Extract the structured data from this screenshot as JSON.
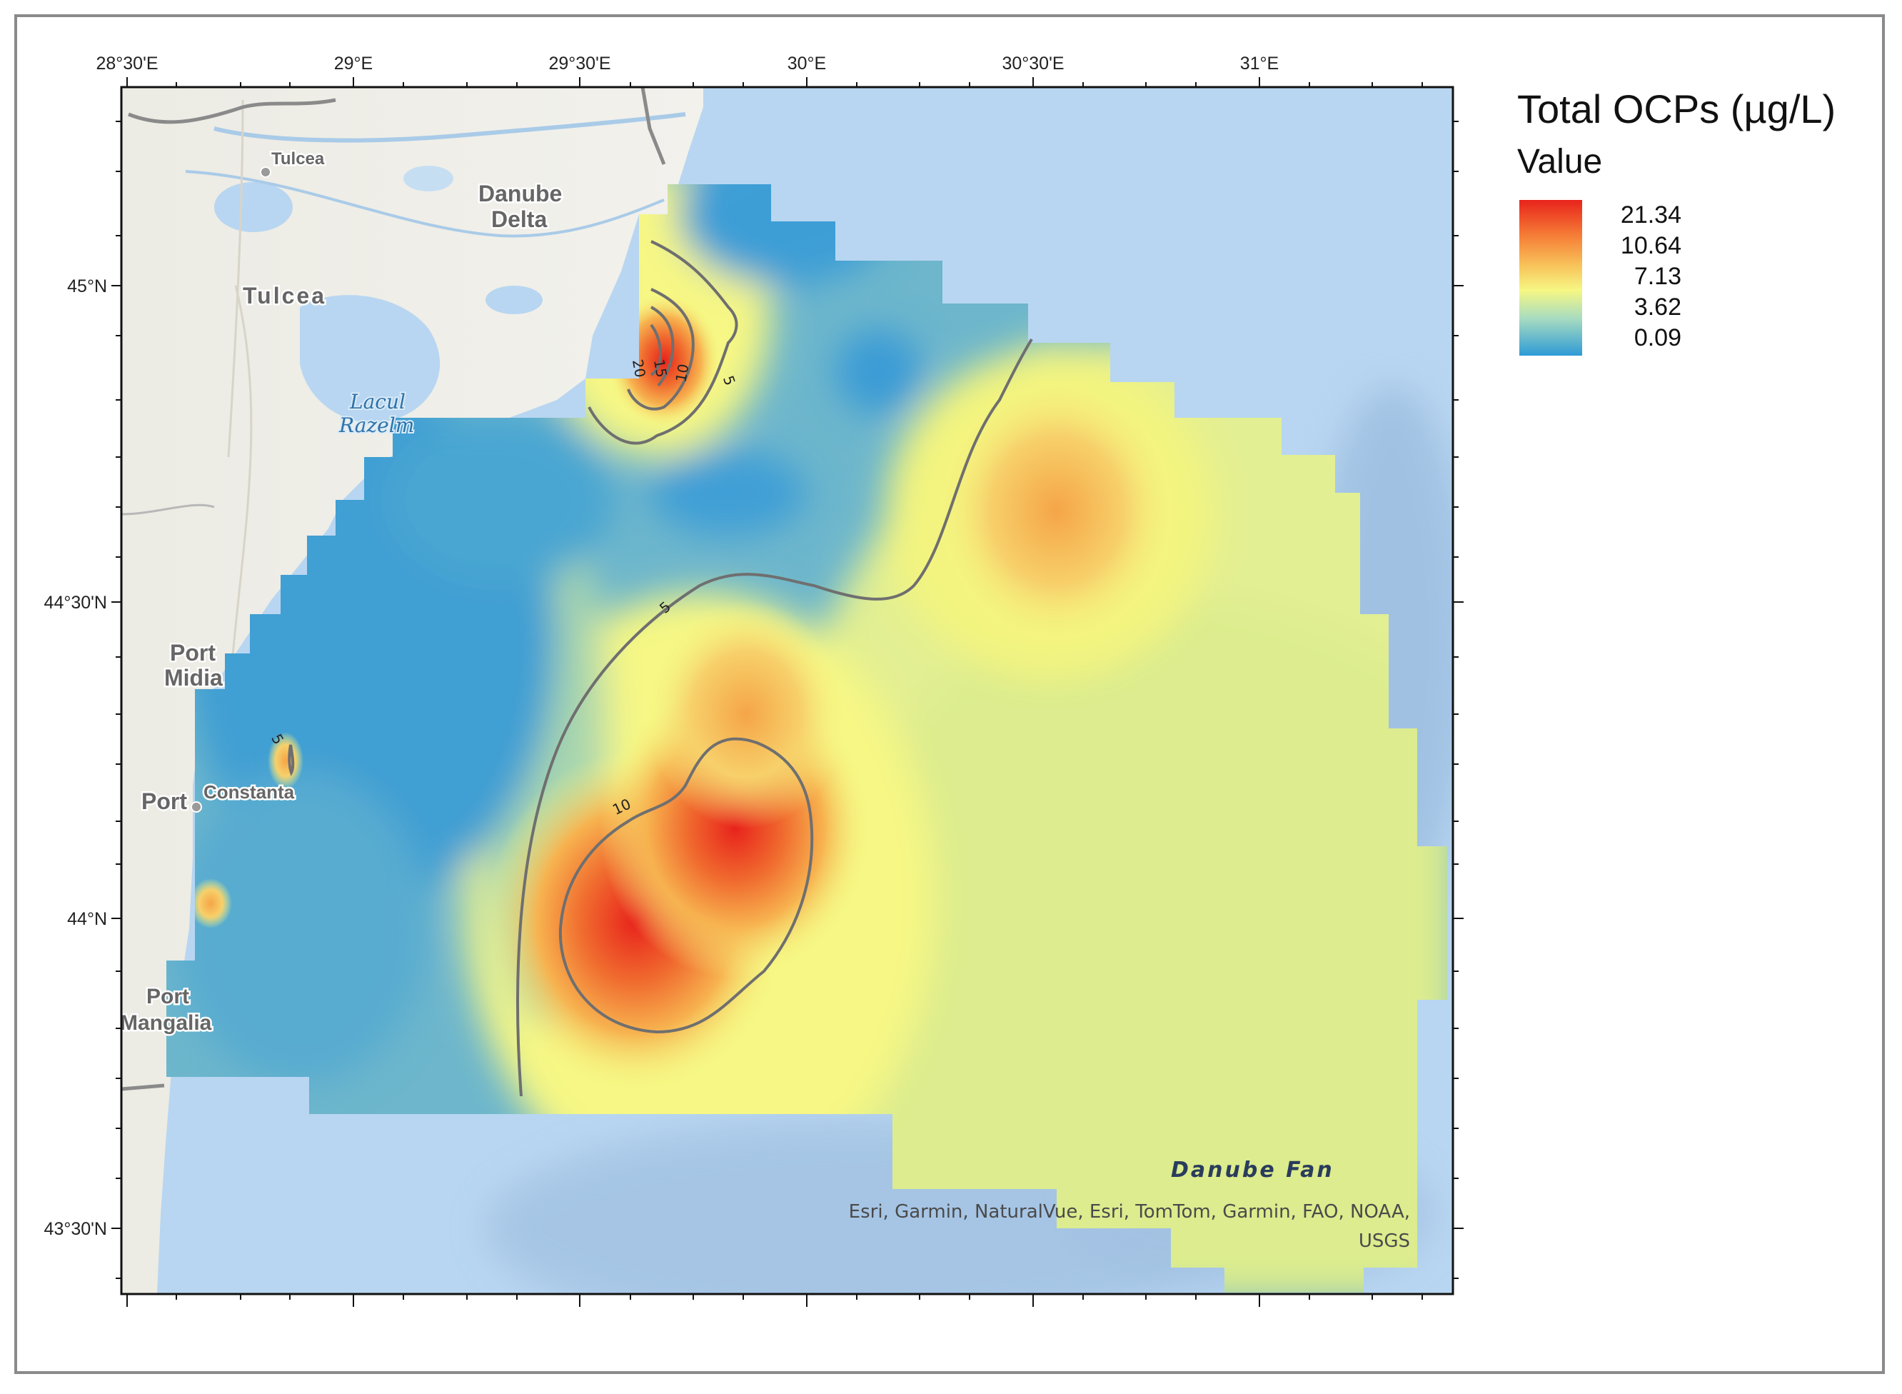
{
  "legend": {
    "title": "Total OCPs (µg/L)",
    "subtitle": "Value",
    "values": [
      "21.34",
      "10.64",
      "7.13",
      "3.62",
      "0.09"
    ],
    "ramp_colors": [
      "#e8231c",
      "#f57a35",
      "#f8c25a",
      "#f6f784",
      "#a8dcc0",
      "#2e9bd6"
    ]
  },
  "axes": {
    "top_labels": [
      "28°30'E",
      "29°E",
      "29°30'E",
      "30°E",
      "30°30'E",
      "31°E"
    ],
    "left_labels": [
      "45°N",
      "44°30'N",
      "44°N",
      "43°30'N"
    ]
  },
  "places": {
    "tulcea_small": "Tulcea",
    "tulcea": "Tulcea",
    "danube_1": "Danube",
    "danube_2": "Delta",
    "lacul_1": "Lacul",
    "lacul_2": "Razelm",
    "port_midia_1": "Port",
    "port_midia_2": "Midia",
    "port_constanta_1": "Port",
    "port_constanta_2": "Constanta",
    "port_mangalia_1": "Port",
    "port_mangalia_2": "Mangalia"
  },
  "contours": {
    "label_5": "5",
    "label_10": "10",
    "label_15": "15",
    "label_20": "20"
  },
  "feature_label": "Danube Fan",
  "attribution": {
    "line1": "Esri, Garmin, NaturalVue, Esri, TomTom, Garmin, FAO, NOAA,",
    "line2": "USGS"
  },
  "colors": {
    "sea": "#b8d6f1",
    "land": "#eeeee8",
    "frame": "#8a8a8a",
    "contour": "#6f6f6f",
    "high": "#e8231c",
    "mid": "#f6f784",
    "low": "#2e9bd6"
  }
}
